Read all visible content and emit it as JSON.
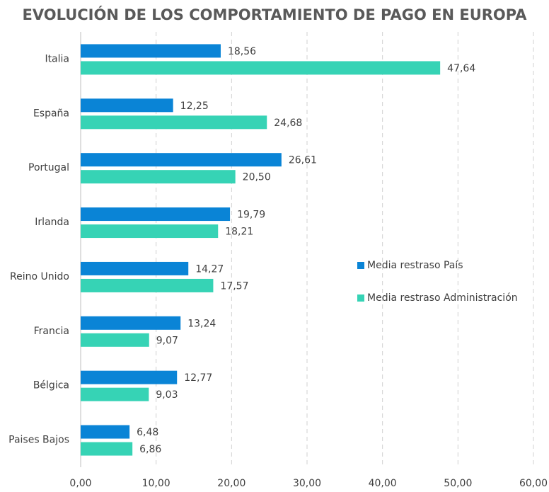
{
  "chart_data": {
    "type": "bar",
    "orientation": "horizontal",
    "title": "EVOLUCIÓN DE LOS COMPORTAMIENTO DE PAGO EN EUROPA",
    "categories": [
      "Italia",
      "España",
      "Portugal",
      "Irlanda",
      "Reino Unido",
      "Francia",
      "Bélgica",
      "Paises Bajos"
    ],
    "series": [
      {
        "name": "Media restraso País",
        "color": "#0a84d6",
        "values": [
          18.56,
          12.25,
          26.61,
          19.79,
          14.27,
          13.24,
          12.77,
          6.48
        ],
        "value_labels": [
          "18,56",
          "12,25",
          "26,61",
          "19,79",
          "14,27",
          "13,24",
          "12,77",
          "6,48"
        ]
      },
      {
        "name": "Media restraso Administración",
        "color": "#36d3b5",
        "values": [
          47.64,
          24.68,
          20.5,
          18.21,
          17.57,
          9.07,
          9.03,
          6.86
        ],
        "value_labels": [
          "47,64",
          "24,68",
          "20,50",
          "18,21",
          "17,57",
          "9,07",
          "9,03",
          "6,86"
        ]
      }
    ],
    "xlim": [
      0,
      60
    ],
    "xticks": [
      {
        "value": 0,
        "label": "0,00"
      },
      {
        "value": 10,
        "label": "10,00"
      },
      {
        "value": 20,
        "label": "20,00"
      },
      {
        "value": 30,
        "label": "30,00"
      },
      {
        "value": 40,
        "label": "40,00"
      },
      {
        "value": 50,
        "label": "50,00"
      },
      {
        "value": 60,
        "label": "60,00"
      }
    ],
    "grid": true,
    "legend_position": "right"
  }
}
